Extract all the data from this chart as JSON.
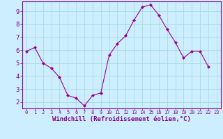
{
  "x_values": [
    0,
    1,
    2,
    3,
    4,
    5,
    6,
    7,
    8,
    9,
    10,
    11,
    12,
    13,
    14,
    15,
    16,
    17,
    18,
    19,
    20,
    21,
    22,
    23
  ],
  "y_values": [
    5.9,
    6.2,
    5.0,
    4.6,
    3.9,
    2.5,
    2.3,
    1.7,
    2.5,
    2.7,
    5.6,
    6.5,
    7.1,
    8.3,
    9.3,
    9.5,
    8.7,
    7.6,
    6.6,
    5.4,
    5.9,
    5.9,
    4.7,
    null
  ],
  "line_color": "#990099",
  "marker": "D",
  "marker_size": 2.0,
  "background_color": "#cceeff",
  "grid_color": "#aadddd",
  "axis_color": "#880088",
  "xlabel": "Windchill (Refroidissement éolien,°C)",
  "xlim": [
    -0.5,
    23.5
  ],
  "ylim": [
    1.5,
    9.75
  ],
  "yticks": [
    2,
    3,
    4,
    5,
    6,
    7,
    8,
    9
  ],
  "xticks": [
    0,
    1,
    2,
    3,
    4,
    5,
    6,
    7,
    8,
    9,
    10,
    11,
    12,
    13,
    14,
    15,
    16,
    17,
    18,
    19,
    20,
    21,
    22,
    23
  ]
}
